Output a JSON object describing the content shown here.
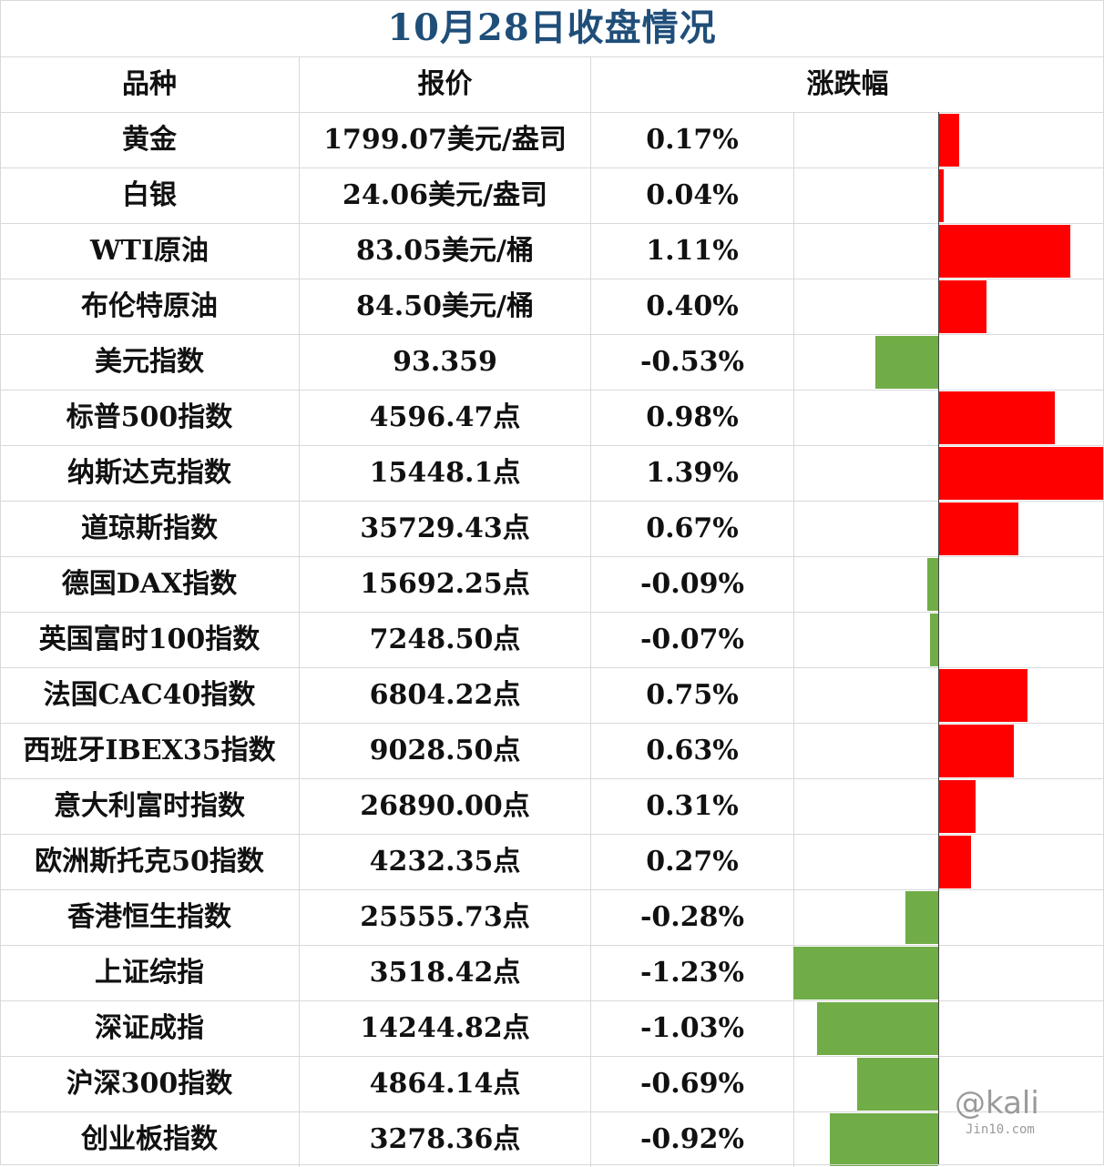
{
  "title": "10月28日收盘情况",
  "headers": {
    "name": "品种",
    "price": "报价",
    "change": "涨跌幅"
  },
  "colors": {
    "up": "#ff0000",
    "down": "#70ad47",
    "title": "#1f4e79"
  },
  "rows": [
    {
      "name": "黄金",
      "price": "1799.07美元/盎司",
      "change": "0.17%",
      "value": 0.17
    },
    {
      "name": "白银",
      "price": "24.06美元/盎司",
      "change": "0.04%",
      "value": 0.04
    },
    {
      "name": "WTI原油",
      "price": "83.05美元/桶",
      "change": "1.11%",
      "value": 1.11
    },
    {
      "name": "布伦特原油",
      "price": "84.50美元/桶",
      "change": "0.40%",
      "value": 0.4
    },
    {
      "name": "美元指数",
      "price": "93.359",
      "change": "-0.53%",
      "value": -0.53
    },
    {
      "name": "标普500指数",
      "price": "4596.47点",
      "change": "0.98%",
      "value": 0.98
    },
    {
      "name": "纳斯达克指数",
      "price": "15448.1点",
      "change": "1.39%",
      "value": 1.39
    },
    {
      "name": "道琼斯指数",
      "price": "35729.43点",
      "change": "0.67%",
      "value": 0.67
    },
    {
      "name": "德国DAX指数",
      "price": "15692.25点",
      "change": "-0.09%",
      "value": -0.09
    },
    {
      "name": "英国富时100指数",
      "price": "7248.50点",
      "change": "-0.07%",
      "value": -0.07
    },
    {
      "name": "法国CAC40指数",
      "price": "6804.22点",
      "change": "0.75%",
      "value": 0.75
    },
    {
      "name": "西班牙IBEX35指数",
      "price": "9028.50点",
      "change": "0.63%",
      "value": 0.63
    },
    {
      "name": "意大利富时指数",
      "price": "26890.00点",
      "change": "0.31%",
      "value": 0.31
    },
    {
      "name": "欧洲斯托克50指数",
      "price": "4232.35点",
      "change": "0.27%",
      "value": 0.27
    },
    {
      "name": "香港恒生指数",
      "price": "25555.73点",
      "change": "-0.28%",
      "value": -0.28
    },
    {
      "name": "上证综指",
      "price": "3518.42点",
      "change": "-1.23%",
      "value": -1.23
    },
    {
      "name": "深证成指",
      "price": "14244.82点",
      "change": "-1.03%",
      "value": -1.03
    },
    {
      "name": "沪深300指数",
      "price": "4864.14点",
      "change": "-0.69%",
      "value": -0.69
    },
    {
      "name": "创业板指数",
      "price": "3278.36点",
      "change": "-0.92%",
      "value": -0.92
    }
  ],
  "watermark": {
    "logo": "@kali",
    "site": "Jin10.com"
  }
}
